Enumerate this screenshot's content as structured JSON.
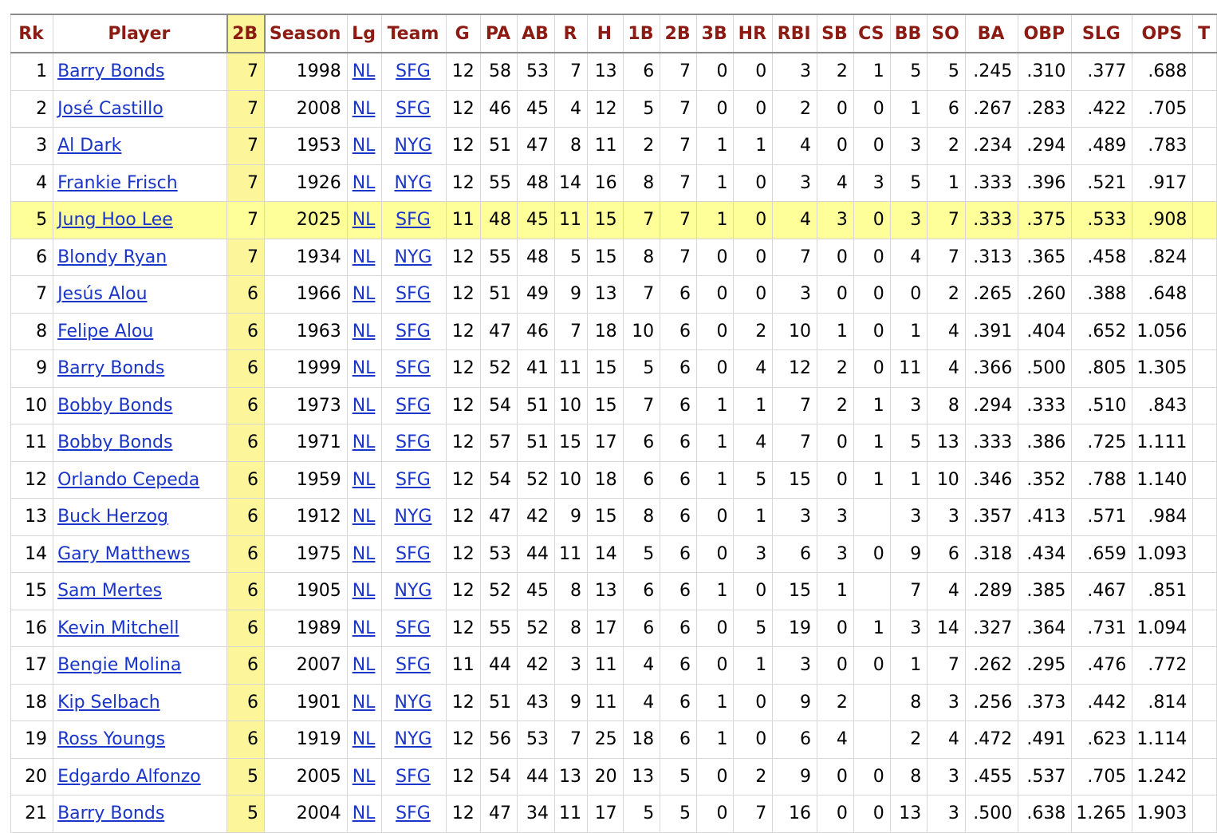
{
  "table": {
    "headers": [
      "Rk",
      "Player",
      "2B",
      "Season",
      "Lg",
      "Team",
      "G",
      "PA",
      "AB",
      "R",
      "H",
      "1B",
      "2B",
      "3B",
      "HR",
      "RBI",
      "SB",
      "CS",
      "BB",
      "SO",
      "BA",
      "OBP",
      "SLG",
      "OPS",
      "T"
    ],
    "sorted_column_index": 2,
    "highlight_color": "#ffff99",
    "sorted_column_color": "#fdf59a",
    "header_text_color": "#8c1c13",
    "link_color": "#1a35c9",
    "rows": [
      [
        "1",
        "Barry Bonds",
        "7",
        "1998",
        "NL",
        "SFG",
        "12",
        "58",
        "53",
        "7",
        "13",
        "6",
        "7",
        "0",
        "0",
        "3",
        "2",
        "1",
        "5",
        "5",
        ".245",
        ".310",
        ".377",
        ".688"
      ],
      [
        "2",
        "José Castillo",
        "7",
        "2008",
        "NL",
        "SFG",
        "12",
        "46",
        "45",
        "4",
        "12",
        "5",
        "7",
        "0",
        "0",
        "2",
        "0",
        "0",
        "1",
        "6",
        ".267",
        ".283",
        ".422",
        ".705"
      ],
      [
        "3",
        "Al Dark",
        "7",
        "1953",
        "NL",
        "NYG",
        "12",
        "51",
        "47",
        "8",
        "11",
        "2",
        "7",
        "1",
        "1",
        "4",
        "0",
        "0",
        "3",
        "2",
        ".234",
        ".294",
        ".489",
        ".783"
      ],
      [
        "4",
        "Frankie Frisch",
        "7",
        "1926",
        "NL",
        "NYG",
        "12",
        "55",
        "48",
        "14",
        "16",
        "8",
        "7",
        "1",
        "0",
        "3",
        "4",
        "3",
        "5",
        "1",
        ".333",
        ".396",
        ".521",
        ".917"
      ],
      [
        "5",
        "Jung Hoo Lee",
        "7",
        "2025",
        "NL",
        "SFG",
        "11",
        "48",
        "45",
        "11",
        "15",
        "7",
        "7",
        "1",
        "0",
        "4",
        "3",
        "0",
        "3",
        "7",
        ".333",
        ".375",
        ".533",
        ".908"
      ],
      [
        "6",
        "Blondy Ryan",
        "7",
        "1934",
        "NL",
        "NYG",
        "12",
        "55",
        "48",
        "5",
        "15",
        "8",
        "7",
        "0",
        "0",
        "7",
        "0",
        "0",
        "4",
        "7",
        ".313",
        ".365",
        ".458",
        ".824"
      ],
      [
        "7",
        "Jesús Alou",
        "6",
        "1966",
        "NL",
        "SFG",
        "12",
        "51",
        "49",
        "9",
        "13",
        "7",
        "6",
        "0",
        "0",
        "3",
        "0",
        "0",
        "0",
        "2",
        ".265",
        ".260",
        ".388",
        ".648"
      ],
      [
        "8",
        "Felipe Alou",
        "6",
        "1963",
        "NL",
        "SFG",
        "12",
        "47",
        "46",
        "7",
        "18",
        "10",
        "6",
        "0",
        "2",
        "10",
        "1",
        "0",
        "1",
        "4",
        ".391",
        ".404",
        ".652",
        "1.056"
      ],
      [
        "9",
        "Barry Bonds",
        "6",
        "1999",
        "NL",
        "SFG",
        "12",
        "52",
        "41",
        "11",
        "15",
        "5",
        "6",
        "0",
        "4",
        "12",
        "2",
        "0",
        "11",
        "4",
        ".366",
        ".500",
        ".805",
        "1.305"
      ],
      [
        "10",
        "Bobby Bonds",
        "6",
        "1973",
        "NL",
        "SFG",
        "12",
        "54",
        "51",
        "10",
        "15",
        "7",
        "6",
        "1",
        "1",
        "7",
        "2",
        "1",
        "3",
        "8",
        ".294",
        ".333",
        ".510",
        ".843"
      ],
      [
        "11",
        "Bobby Bonds",
        "6",
        "1971",
        "NL",
        "SFG",
        "12",
        "57",
        "51",
        "15",
        "17",
        "6",
        "6",
        "1",
        "4",
        "7",
        "0",
        "1",
        "5",
        "13",
        ".333",
        ".386",
        ".725",
        "1.111"
      ],
      [
        "12",
        "Orlando Cepeda",
        "6",
        "1959",
        "NL",
        "SFG",
        "12",
        "54",
        "52",
        "10",
        "18",
        "6",
        "6",
        "1",
        "5",
        "15",
        "0",
        "1",
        "1",
        "10",
        ".346",
        ".352",
        ".788",
        "1.140"
      ],
      [
        "13",
        "Buck Herzog",
        "6",
        "1912",
        "NL",
        "NYG",
        "12",
        "47",
        "42",
        "9",
        "15",
        "8",
        "6",
        "0",
        "1",
        "3",
        "3",
        "",
        "3",
        "3",
        ".357",
        ".413",
        ".571",
        ".984"
      ],
      [
        "14",
        "Gary Matthews",
        "6",
        "1975",
        "NL",
        "SFG",
        "12",
        "53",
        "44",
        "11",
        "14",
        "5",
        "6",
        "0",
        "3",
        "6",
        "3",
        "0",
        "9",
        "6",
        ".318",
        ".434",
        ".659",
        "1.093"
      ],
      [
        "15",
        "Sam Mertes",
        "6",
        "1905",
        "NL",
        "NYG",
        "12",
        "52",
        "45",
        "8",
        "13",
        "6",
        "6",
        "1",
        "0",
        "15",
        "1",
        "",
        "7",
        "4",
        ".289",
        ".385",
        ".467",
        ".851"
      ],
      [
        "16",
        "Kevin Mitchell",
        "6",
        "1989",
        "NL",
        "SFG",
        "12",
        "55",
        "52",
        "8",
        "17",
        "6",
        "6",
        "0",
        "5",
        "19",
        "0",
        "1",
        "3",
        "14",
        ".327",
        ".364",
        ".731",
        "1.094"
      ],
      [
        "17",
        "Bengie Molina",
        "6",
        "2007",
        "NL",
        "SFG",
        "11",
        "44",
        "42",
        "3",
        "11",
        "4",
        "6",
        "0",
        "1",
        "3",
        "0",
        "0",
        "1",
        "7",
        ".262",
        ".295",
        ".476",
        ".772"
      ],
      [
        "18",
        "Kip Selbach",
        "6",
        "1901",
        "NL",
        "NYG",
        "12",
        "51",
        "43",
        "9",
        "11",
        "4",
        "6",
        "1",
        "0",
        "9",
        "2",
        "",
        "8",
        "3",
        ".256",
        ".373",
        ".442",
        ".814"
      ],
      [
        "19",
        "Ross Youngs",
        "6",
        "1919",
        "NL",
        "NYG",
        "12",
        "56",
        "53",
        "7",
        "25",
        "18",
        "6",
        "1",
        "0",
        "6",
        "4",
        "",
        "2",
        "4",
        ".472",
        ".491",
        ".623",
        "1.114"
      ],
      [
        "20",
        "Edgardo Alfonzo",
        "5",
        "2005",
        "NL",
        "SFG",
        "12",
        "54",
        "44",
        "13",
        "20",
        "13",
        "5",
        "0",
        "2",
        "9",
        "0",
        "0",
        "8",
        "3",
        ".455",
        ".537",
        ".705",
        "1.242"
      ],
      [
        "21",
        "Barry Bonds",
        "5",
        "2004",
        "NL",
        "SFG",
        "12",
        "47",
        "34",
        "11",
        "17",
        "5",
        "5",
        "0",
        "7",
        "16",
        "0",
        "0",
        "13",
        "3",
        ".500",
        ".638",
        "1.265",
        "1.903"
      ]
    ],
    "highlighted_row_index": 4
  }
}
